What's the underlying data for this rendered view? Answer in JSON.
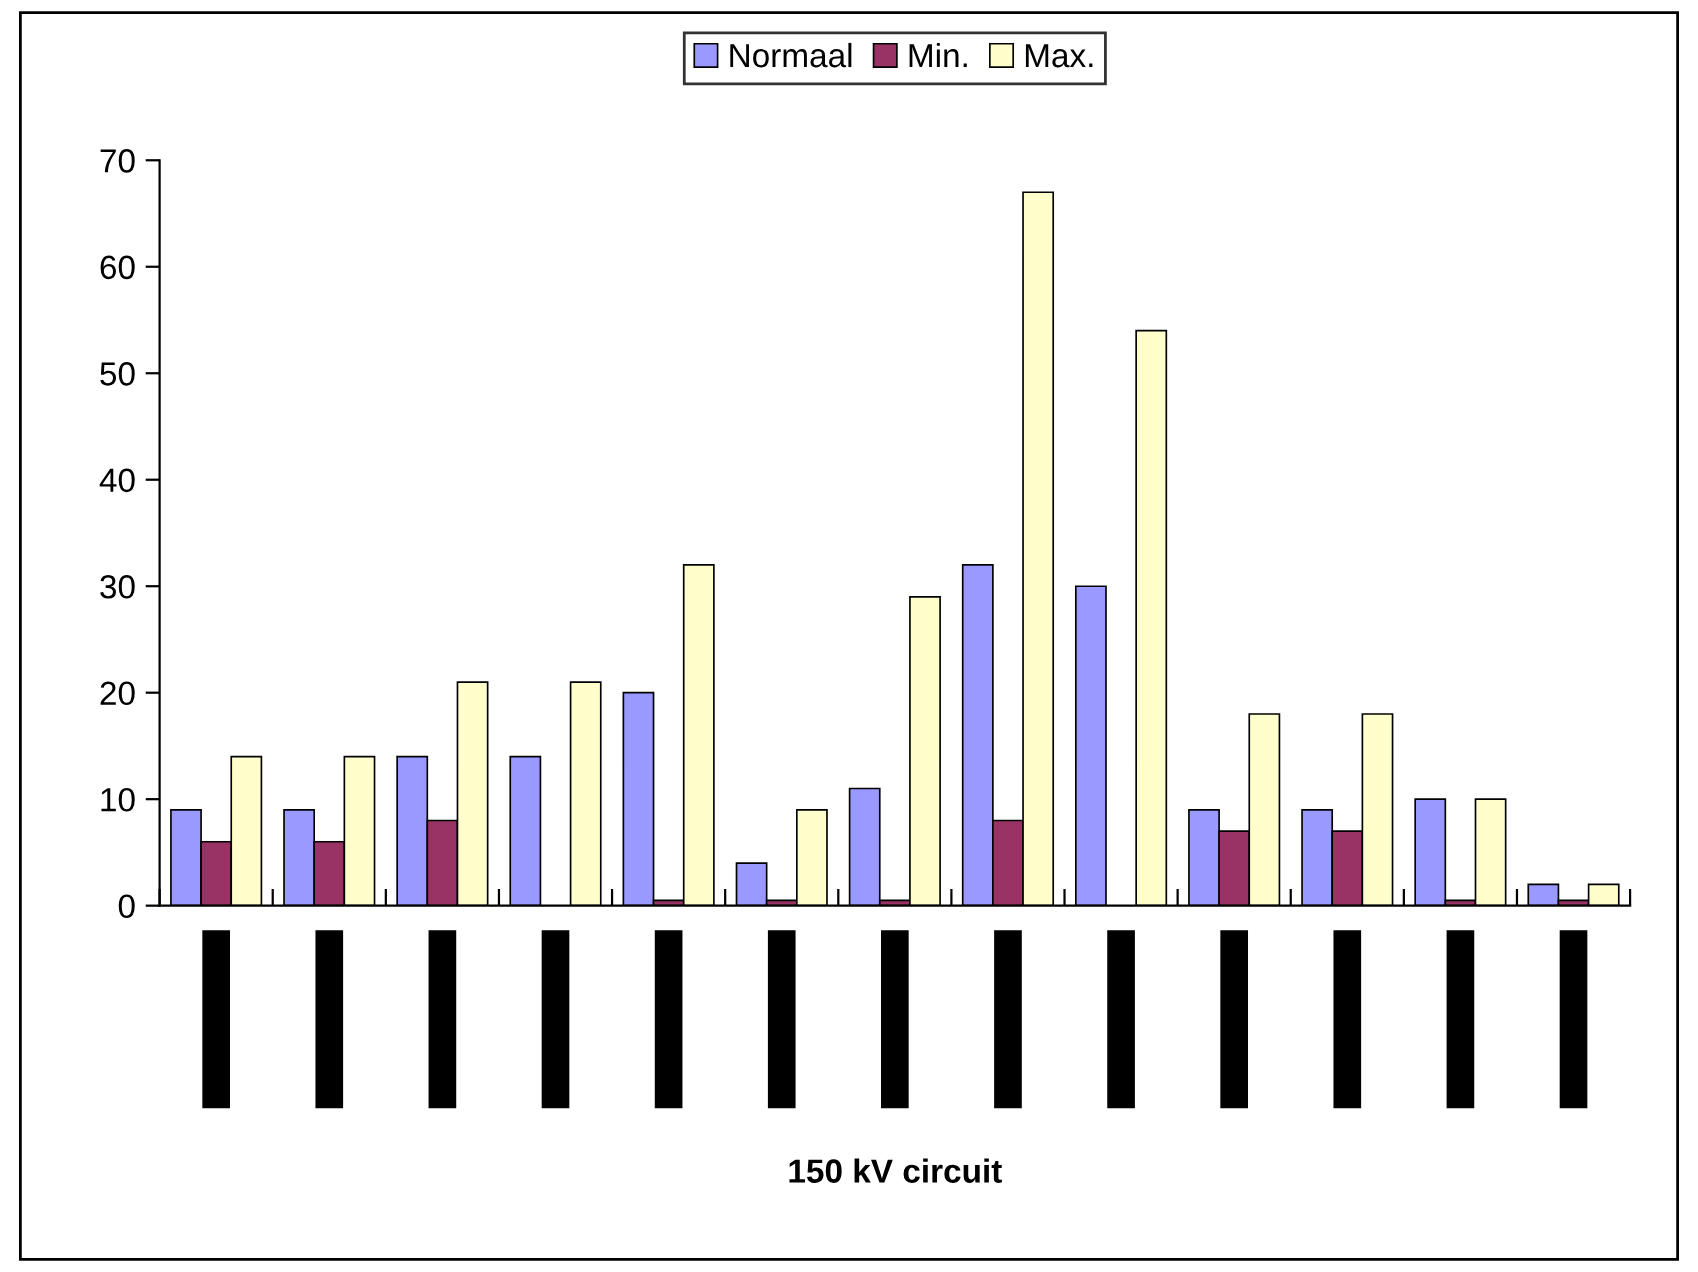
{
  "chart_data": {
    "type": "bar",
    "annotations": [
      "150 kV circuit"
    ],
    "categories": [
      null,
      null,
      null,
      null,
      null,
      null,
      null,
      null,
      null,
      null,
      null,
      null,
      null
    ],
    "series": [
      {
        "name": "Normaal",
        "color": "#9999ff",
        "values": [
          9,
          9,
          14,
          14,
          20,
          4,
          11,
          32,
          30,
          9,
          9,
          10,
          2
        ]
      },
      {
        "name": "Min.",
        "color": "#993366",
        "values": [
          6,
          6,
          8,
          null,
          0.5,
          0.5,
          0.5,
          8,
          null,
          7,
          7,
          0.5,
          0.5
        ]
      },
      {
        "name": "Max.",
        "color": "#ffffcc",
        "values": [
          14,
          14,
          21,
          21,
          32,
          9,
          29,
          67,
          54,
          18,
          18,
          10,
          2
        ]
      }
    ],
    "ylim": [
      0,
      70
    ],
    "yticks": [
      0,
      10,
      20,
      30,
      40,
      50,
      60,
      70
    ],
    "grid": false,
    "legend": "top"
  }
}
